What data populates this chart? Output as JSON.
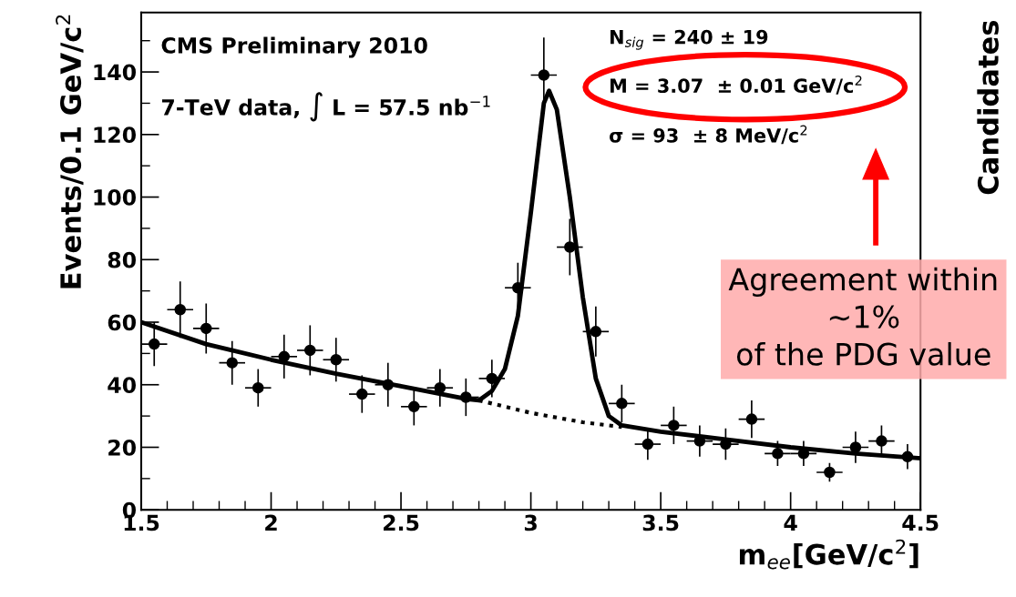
{
  "chart_data": {
    "type": "scatter",
    "xlabel": "m$_{ee}$[GeV/c$^{2}$]",
    "ylabel": "Events/0.1 GeV/c$^{2}$",
    "xlim": [
      1.5,
      4.5
    ],
    "xticks": [
      1.5,
      2,
      2.5,
      3,
      3.5,
      4,
      4.5
    ],
    "ylim": [
      0,
      159
    ],
    "yticks": [
      0,
      20,
      40,
      60,
      80,
      100,
      120,
      140
    ],
    "marker": "circle",
    "grid": false,
    "legend": false,
    "series": [
      {
        "color": "#000000",
        "x": [
          1.55,
          1.65,
          1.75,
          1.85,
          1.95,
          2.05,
          2.15,
          2.25,
          2.35,
          2.45,
          2.55,
          2.65,
          2.75,
          2.85,
          2.95,
          3.05,
          3.15,
          3.25,
          3.35,
          3.45,
          3.55,
          3.65,
          3.75,
          3.85,
          3.95,
          4.05,
          4.15,
          4.25,
          4.35,
          4.45
        ],
        "values": [
          53,
          64,
          58,
          47,
          39,
          49,
          51,
          48,
          37,
          40,
          33,
          39,
          36,
          42,
          71,
          139,
          84,
          57,
          34,
          21,
          27,
          22,
          21,
          29,
          18,
          18,
          12,
          20,
          22,
          17
        ],
        "errors": [
          7,
          9,
          8,
          7,
          6,
          7,
          8,
          7,
          6,
          7,
          6,
          6,
          6,
          6,
          8,
          12,
          9,
          8,
          6,
          5,
          6,
          5,
          5,
          6,
          4,
          4,
          3,
          5,
          5,
          4
        ],
        "xerrors": [
          0.05,
          0.05,
          0.05,
          0.05,
          0.05,
          0.05,
          0.05,
          0.05,
          0.05,
          0.05,
          0.05,
          0.05,
          0.05,
          0.05,
          0.05,
          0.05,
          0.05,
          0.05,
          0.05,
          0.05,
          0.05,
          0.05,
          0.05,
          0.05,
          0.05,
          0.05,
          0.05,
          0.05,
          0.05,
          0.05
        ]
      },
      {
        "type": "line",
        "color": "#000000",
        "marker": "none",
        "line_style": "solid",
        "x": [
          1.5,
          1.75,
          2.0,
          2.25,
          2.5,
          2.75,
          2.8,
          2.85,
          2.9,
          2.95,
          3.0,
          3.05,
          3.07,
          3.1,
          3.15,
          3.2,
          3.25,
          3.3,
          3.35,
          3.5,
          3.75,
          4.0,
          4.25,
          4.5
        ],
        "values": [
          60,
          53,
          48,
          43.5,
          39.5,
          35.5,
          35,
          38,
          45,
          62,
          95,
          130,
          134,
          128,
          100,
          68,
          42,
          30,
          27,
          25,
          22.5,
          20,
          18,
          16.5
        ]
      },
      {
        "type": "line",
        "color": "#000000",
        "marker": "none",
        "line_style": "dotted",
        "x": [
          2.8,
          3.0,
          3.2,
          3.35
        ],
        "values": [
          35,
          31,
          28,
          26.5
        ]
      }
    ],
    "annotations": [
      "CMS Preliminary 2010",
      "7-TeV data, ∫ L = 57.5 nb$^{−1}$",
      "N$_{sig}$ = 240 ± 19",
      "M = 3.07  ± 0.01 GeV/c$^{2}$",
      "σ = 93  ± 8 MeV/c$^{2}$",
      "Agreement within\n~1%\nof the PDG value",
      "Candidates"
    ]
  }
}
